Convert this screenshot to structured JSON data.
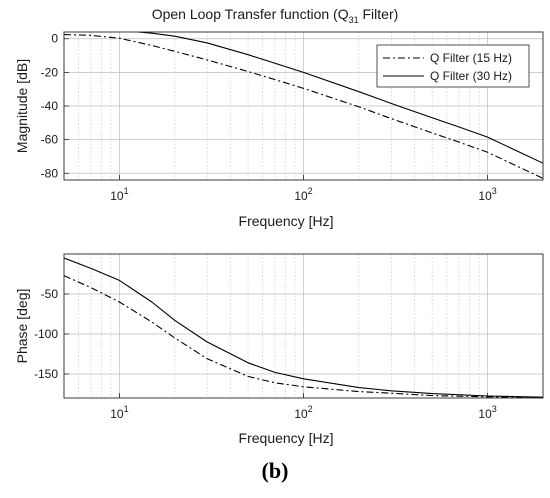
{
  "chart_data": [
    {
      "type": "line",
      "title_main": "Open Loop Transfer function (Q",
      "title_sub": "31",
      "title_end": " Filter)",
      "xlabel": "Frequency [Hz]",
      "ylabel": "Magnitude [dB]",
      "xscale": "log",
      "xlim": [
        5,
        2000
      ],
      "ylim": [
        -84,
        4
      ],
      "yticks": [
        0,
        -20,
        -40,
        -60,
        -80
      ],
      "xticks": [
        10,
        100,
        1000
      ],
      "grid": true,
      "legend_position": "top-right",
      "series": [
        {
          "name": "Q Filter (15 Hz)",
          "style": "dash-dot",
          "x": [
            5,
            7,
            10,
            15,
            20,
            30,
            50,
            70,
            100,
            200,
            300,
            500,
            700,
            1000,
            2000
          ],
          "y": [
            2.5,
            2,
            0.3,
            -4,
            -7.5,
            -12.6,
            -19.5,
            -24.3,
            -29.5,
            -40.5,
            -47.5,
            -56,
            -61.5,
            -67.5,
            -83
          ]
        },
        {
          "name": "Q Filter (30 Hz)",
          "style": "solid",
          "x": [
            5,
            7,
            10,
            15,
            20,
            30,
            50,
            70,
            100,
            200,
            300,
            500,
            700,
            1000,
            2000
          ],
          "y": [
            4.5,
            4.8,
            5,
            3.3,
            1.5,
            -2.5,
            -9.5,
            -14.6,
            -20,
            -31.5,
            -38.5,
            -47,
            -52.5,
            -58.5,
            -74
          ]
        }
      ]
    },
    {
      "type": "line",
      "xlabel": "Frequency [Hz]",
      "ylabel": "Phase [deg]",
      "xscale": "log",
      "xlim": [
        5,
        2000
      ],
      "ylim": [
        -180,
        0
      ],
      "yticks": [
        -50,
        -100,
        -150
      ],
      "xticks": [
        10,
        100,
        1000
      ],
      "grid": true,
      "series": [
        {
          "name": "Q Filter (15 Hz)",
          "style": "dash-dot",
          "x": [
            5,
            7,
            10,
            15,
            20,
            30,
            50,
            70,
            100,
            200,
            300,
            500,
            1000,
            2000
          ],
          "y": [
            -27,
            -42,
            -60,
            -85,
            -105,
            -131,
            -153,
            -161,
            -166,
            -172,
            -174,
            -177,
            -178.5,
            -179.5
          ]
        },
        {
          "name": "Q Filter (30 Hz)",
          "style": "solid",
          "x": [
            5,
            7,
            10,
            15,
            20,
            30,
            50,
            70,
            100,
            200,
            300,
            500,
            1000,
            2000
          ],
          "y": [
            -5,
            -18,
            -33,
            -60,
            -83,
            -110,
            -136,
            -148,
            -156,
            -167,
            -171,
            -174.5,
            -177.5,
            -179
          ]
        }
      ]
    }
  ],
  "caption": "(b)"
}
